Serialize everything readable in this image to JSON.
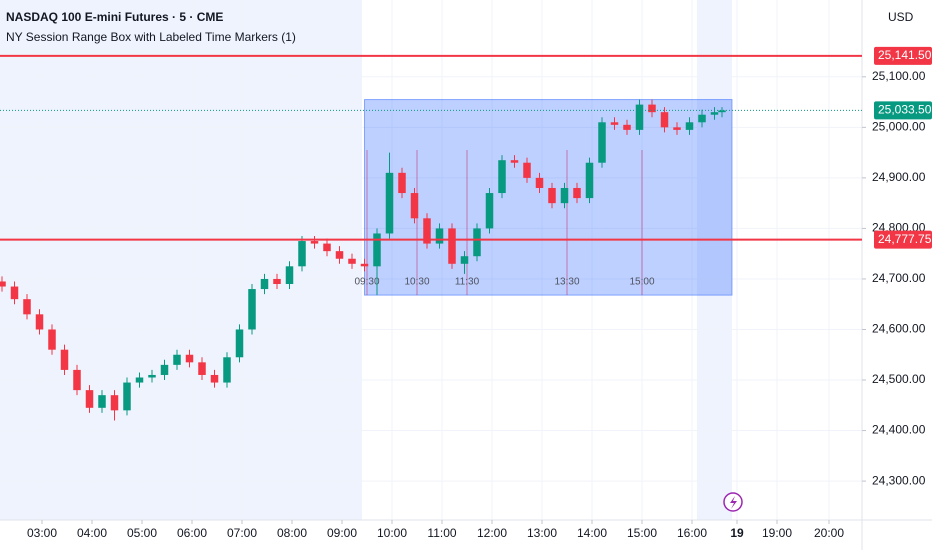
{
  "chart_data": {
    "type": "candlestick",
    "title": "NASDAQ 100 E-mini Futures · 5 · CME",
    "subtitle": "NY Session Range Box with Labeled Time Markers (1)",
    "currency": "USD",
    "up_color": "#089981",
    "down_color": "#f23645",
    "x": [
      2.2,
      2.45,
      2.7,
      2.95,
      3.2,
      3.45,
      3.7,
      3.95,
      4.2,
      4.45,
      4.7,
      4.95,
      5.2,
      5.45,
      5.7,
      5.95,
      6.2,
      6.45,
      6.7,
      6.95,
      7.2,
      7.45,
      7.7,
      7.95,
      8.2,
      8.45,
      8.7,
      8.95,
      9.2,
      9.45,
      9.7,
      9.95,
      10.2,
      10.45,
      10.7,
      10.95,
      11.2,
      11.45,
      11.7,
      11.95,
      12.2,
      12.45,
      12.7,
      12.95,
      13.2,
      13.45,
      13.7,
      13.95,
      14.2,
      14.45,
      14.7,
      14.95,
      15.2,
      15.45,
      15.7,
      15.95,
      16.2,
      16.45,
      16.6
    ],
    "open": [
      24695,
      24685,
      24660,
      24630,
      24600,
      24560,
      24520,
      24480,
      24445,
      24470,
      24440,
      24495,
      24505,
      24510,
      24530,
      24550,
      24535,
      24510,
      24495,
      24545,
      24600,
      24680,
      24700,
      24690,
      24725,
      24775,
      24770,
      24755,
      24740,
      24730,
      24725,
      24790,
      24910,
      24870,
      24820,
      24770,
      24800,
      24730,
      24745,
      24800,
      24870,
      24935,
      24930,
      24900,
      24880,
      24850,
      24880,
      24860,
      24930,
      25010,
      25005,
      24995,
      25045,
      25030,
      25000,
      24995,
      25010,
      25025,
      25030
    ],
    "high": [
      24705,
      24695,
      24670,
      24640,
      24610,
      24570,
      24530,
      24490,
      24480,
      24480,
      24505,
      24515,
      24520,
      24540,
      24560,
      24560,
      24545,
      24520,
      24555,
      24610,
      24690,
      24710,
      24710,
      24735,
      24785,
      24785,
      24780,
      24765,
      24750,
      24740,
      24800,
      24950,
      24920,
      24880,
      24830,
      24810,
      24810,
      24755,
      24810,
      24880,
      24945,
      24945,
      24940,
      24910,
      24890,
      24890,
      24890,
      24940,
      25020,
      25020,
      25015,
      25055,
      25055,
      25040,
      25010,
      25020,
      25035,
      25040,
      25040
    ],
    "low": [
      24675,
      24650,
      24620,
      24590,
      24550,
      24510,
      24470,
      24435,
      24435,
      24420,
      24430,
      24485,
      24495,
      24500,
      24520,
      24525,
      24500,
      24485,
      24485,
      24535,
      24590,
      24670,
      24680,
      24680,
      24715,
      24760,
      24745,
      24730,
      24720,
      24715,
      24668,
      24780,
      24860,
      24810,
      24760,
      24760,
      24720,
      24710,
      24735,
      24790,
      24860,
      24920,
      24890,
      24870,
      24840,
      24840,
      24850,
      24850,
      24920,
      24995,
      24985,
      24985,
      25020,
      24990,
      24985,
      24985,
      25000,
      25015,
      25020
    ],
    "close": [
      24685,
      24660,
      24630,
      24600,
      24560,
      24520,
      24480,
      24445,
      24470,
      24440,
      24495,
      24505,
      24510,
      24530,
      24550,
      24535,
      24510,
      24495,
      24545,
      24600,
      24680,
      24700,
      24690,
      24725,
      24775,
      24770,
      24755,
      24740,
      24730,
      24725,
      24790,
      24910,
      24870,
      24820,
      24770,
      24800,
      24730,
      24745,
      24800,
      24870,
      24935,
      24930,
      24900,
      24880,
      24850,
      24880,
      24860,
      24930,
      25010,
      25005,
      24995,
      25045,
      25030,
      25000,
      24995,
      25010,
      25025,
      25030,
      25033.5
    ],
    "xlim": [
      2.16,
      19.4
    ],
    "ylim": [
      24223,
      25252
    ],
    "xticks": [
      {
        "value": 3,
        "label": "03:00"
      },
      {
        "value": 4,
        "label": "04:00"
      },
      {
        "value": 5,
        "label": "05:00"
      },
      {
        "value": 6,
        "label": "06:00"
      },
      {
        "value": 7,
        "label": "07:00"
      },
      {
        "value": 8,
        "label": "08:00"
      },
      {
        "value": 9,
        "label": "09:00"
      },
      {
        "value": 10,
        "label": "10:00"
      },
      {
        "value": 11,
        "label": "11:00"
      },
      {
        "value": 12,
        "label": "12:00"
      },
      {
        "value": 13,
        "label": "13:00"
      },
      {
        "value": 14,
        "label": "14:00"
      },
      {
        "value": 15,
        "label": "15:00"
      },
      {
        "value": 16,
        "label": "16:00"
      },
      {
        "value": 16.9,
        "label": "19"
      },
      {
        "value": 17.7,
        "label": "19:00"
      },
      {
        "value": 18.74,
        "label": "20:00"
      }
    ],
    "yticks": [
      {
        "value": 25100,
        "label": "25,100.00"
      },
      {
        "value": 25000,
        "label": "25,000.00"
      },
      {
        "value": 24900,
        "label": "24,900.00"
      },
      {
        "value": 24800,
        "label": "24,800.00"
      },
      {
        "value": 24700,
        "label": "24,700.00"
      },
      {
        "value": 24600,
        "label": "24,600.00"
      },
      {
        "value": 24500,
        "label": "24,500.00"
      },
      {
        "value": 24400,
        "label": "24,400.00"
      },
      {
        "value": 24300,
        "label": "24,300.00"
      }
    ],
    "grid": true,
    "levels": [
      {
        "value": 25141.5,
        "label": "25,141.50",
        "color": "#f23645"
      },
      {
        "value": 24777.75,
        "label": "24,777.75",
        "color": "#f23645"
      }
    ],
    "last": {
      "value": 25033.5,
      "label": "25,033.50",
      "color": "#089981"
    },
    "range_box": {
      "high": 25055,
      "low": 24668,
      "x_start": 9.45,
      "x_end": 16.8,
      "color": "#2962ff"
    },
    "time_markers": [
      {
        "x": 9.5,
        "label": "09:30"
      },
      {
        "x": 10.5,
        "label": "10:30"
      },
      {
        "x": 11.5,
        "label": "11:30"
      },
      {
        "x": 13.5,
        "label": "13:30"
      },
      {
        "x": 15,
        "label": "15:00"
      }
    ]
  }
}
